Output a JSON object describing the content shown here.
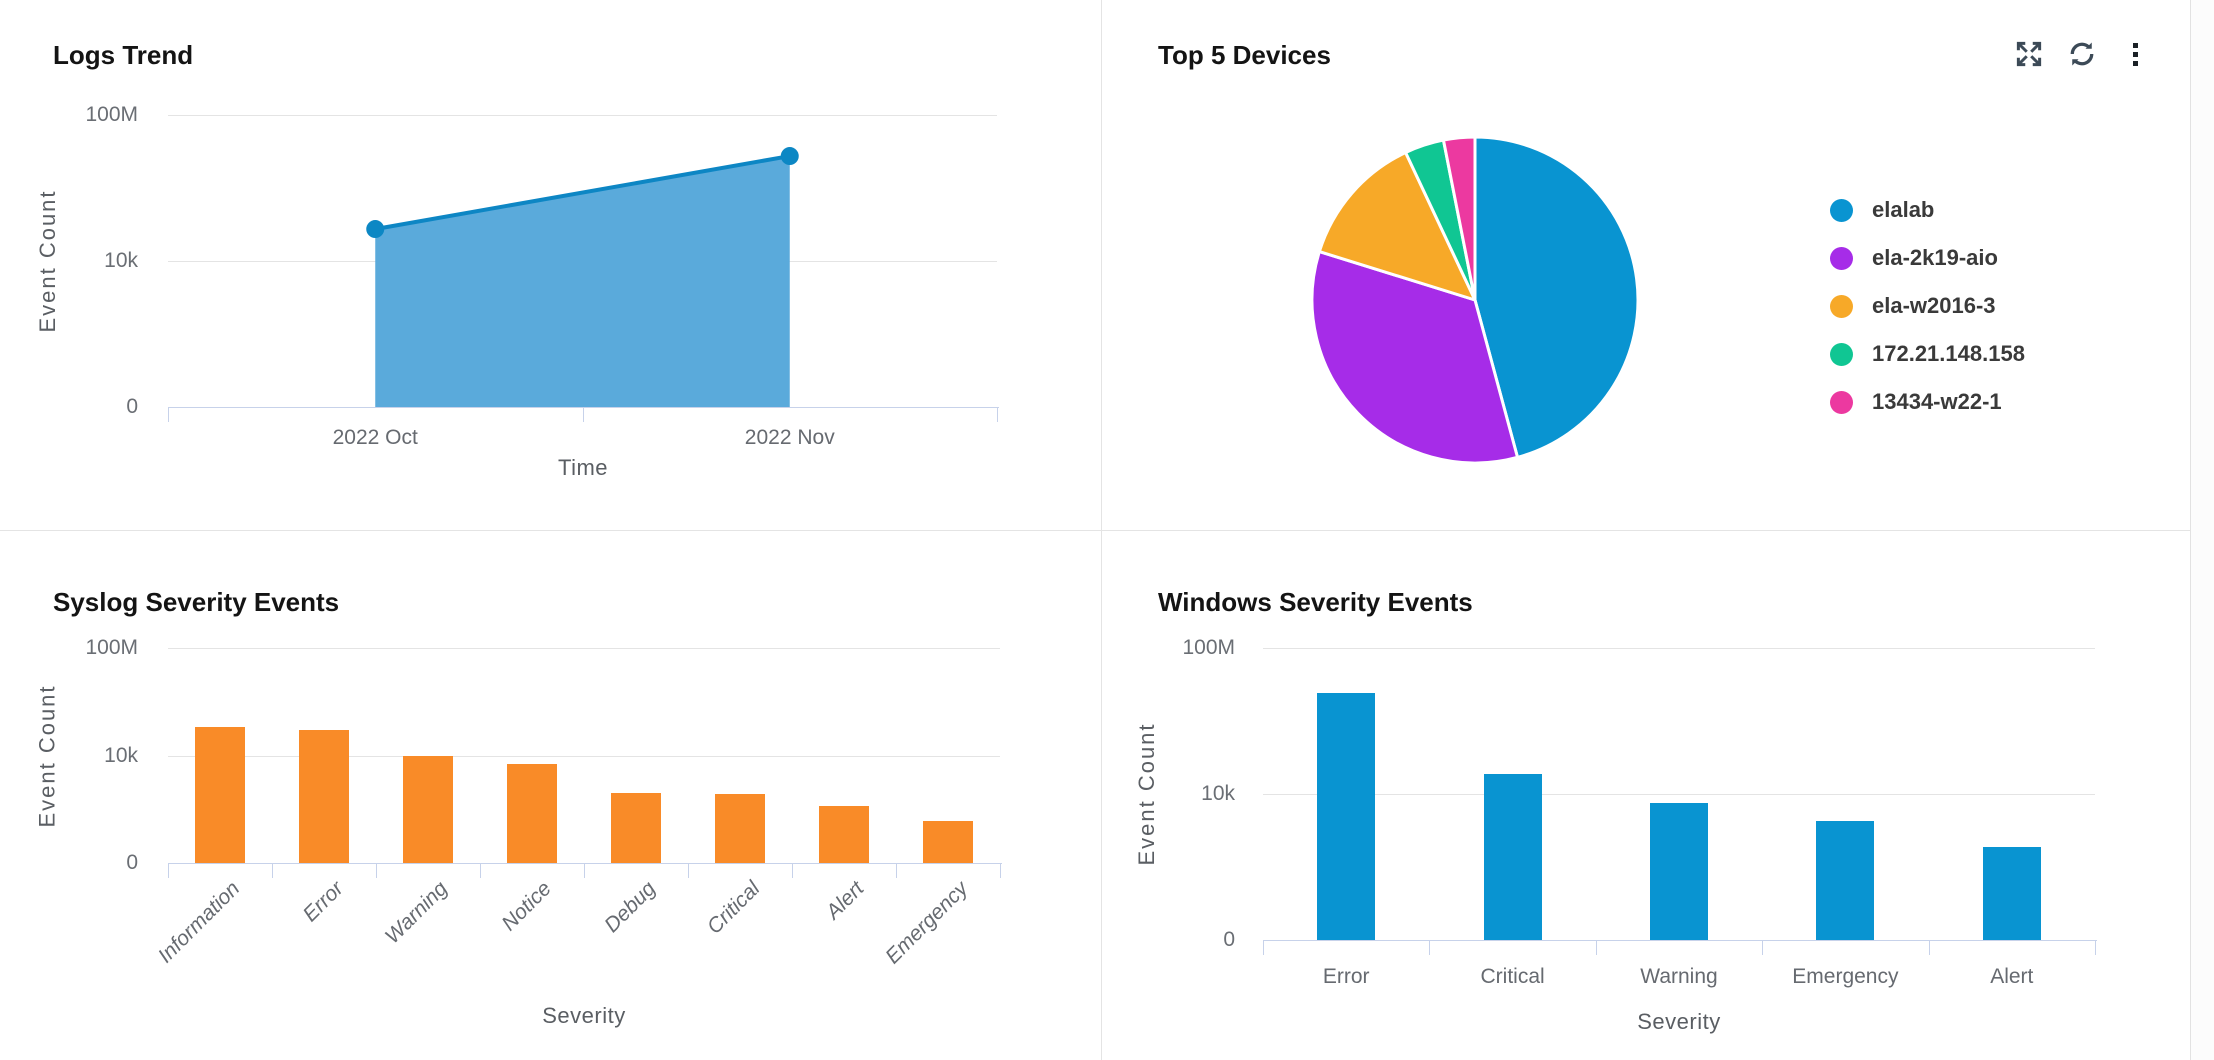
{
  "app": {
    "background": "#ffffff",
    "panel_border": "#e4e4e4",
    "axis_line_color": "#c7d2ea",
    "gridline_color": "#e4e4e4"
  },
  "toolbar": {
    "icons": [
      "expand",
      "refresh",
      "more-options"
    ],
    "icon_color": "#3c4a57"
  },
  "chart_data": [
    {
      "id": "logs-trend",
      "type": "area",
      "title": "Logs Trend",
      "xlabel": "Time",
      "ylabel": "Event Count",
      "x": [
        "2022 Oct",
        "2022 Nov"
      ],
      "values": [
        75000,
        7500000
      ],
      "yscale": "log",
      "ylim": [
        1,
        100000000
      ],
      "yticks": [
        "100M",
        "10k",
        "0"
      ],
      "grid": "horizontal",
      "colors": {
        "line": "#0d86c4",
        "fill": "#5aaadb",
        "point": "#0c87c4"
      }
    },
    {
      "id": "top-devices",
      "type": "pie",
      "title": "Top 5 Devices",
      "legend_position": "right",
      "slices": [
        {
          "label": "elalab",
          "percent": 45.8,
          "color": "#0994d1"
        },
        {
          "label": "ela-2k19-aio",
          "percent": 34.0,
          "color": "#a62ce8"
        },
        {
          "label": "ela-w2016-3",
          "percent": 13.2,
          "color": "#f7a928"
        },
        {
          "label": "172.21.148.158",
          "percent": 3.9,
          "color": "#10c693"
        },
        {
          "label": "13434-w22-1",
          "percent": 3.1,
          "color": "#ec39a0"
        }
      ]
    },
    {
      "id": "syslog-severity",
      "type": "bar",
      "title": "Syslog Severity Events",
      "xlabel": "Severity",
      "ylabel": "Event Count",
      "categories": [
        "Information",
        "Error",
        "Warning",
        "Notice",
        "Debug",
        "Critical",
        "Alert",
        "Emergency"
      ],
      "values": [
        115000,
        90000,
        9800,
        4900,
        420,
        360,
        130,
        36
      ],
      "yscale": "log",
      "ylim": [
        1,
        100000000
      ],
      "yticks": [
        "100M",
        "10k",
        "0"
      ],
      "grid": "horizontal",
      "bar_color": "#f98b28",
      "label_style": "rotated-italic"
    },
    {
      "id": "windows-severity",
      "type": "bar",
      "title": "Windows Severity Events",
      "xlabel": "Severity",
      "ylabel": "Event Count",
      "categories": [
        "Error",
        "Critical",
        "Warning",
        "Emergency",
        "Alert"
      ],
      "values": [
        5800000,
        35000,
        5600,
        1800,
        350
      ],
      "yscale": "log",
      "ylim": [
        1,
        100000000
      ],
      "yticks": [
        "100M",
        "10k",
        "0"
      ],
      "grid": "horizontal",
      "bar_color": "#0994d1",
      "label_style": "horizontal"
    }
  ]
}
